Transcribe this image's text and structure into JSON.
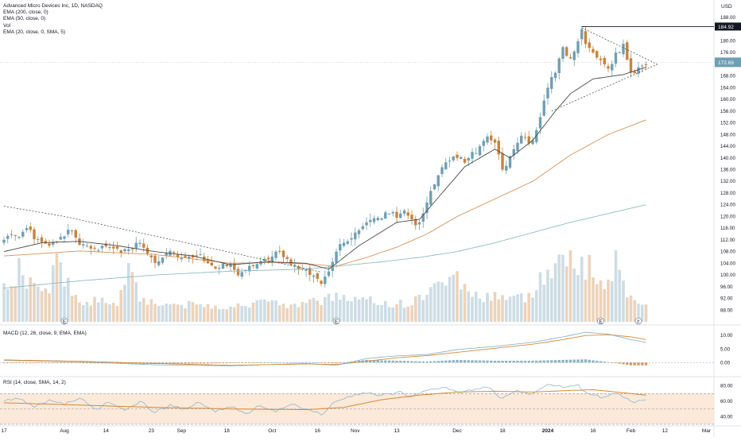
{
  "symbol_title": "Advanced Micro Devices Inc, 1D, NASDAQ",
  "overlays": [
    "EMA (200, close, 0)",
    "EMA (50, close, 0)",
    "Vol",
    "EMA (20, close, 0, SMA, 5)"
  ],
  "currency": "USD",
  "macd_title": "MACD (12, 26, close, 9, EMA, EMA)",
  "rsi_title": "RSI (14, close, SMA, 14, 2)",
  "last_price_label": "172.69",
  "high_level_label": "184.92",
  "colors": {
    "up": "#6f9fb4",
    "down": "#c9823b",
    "ema20": "#4a4a4a",
    "ema50": "#d8935a",
    "ema200": "#8fbcc2",
    "rsi_line": "#8fb7cc",
    "rsi_ma": "#d48a3a",
    "rsi_band": "#fbe9d9",
    "macd_line": "#8fb7cc",
    "signal_line": "#d48a3a"
  },
  "chart_data": [
    {
      "type": "candlestick",
      "name": "price",
      "x_ticks": [
        "17",
        "Aug",
        "14",
        "23",
        "Sep",
        "18",
        "Oct",
        "16",
        "Nov",
        "13",
        "Dec",
        "18",
        "2024",
        "16",
        "Feb",
        "12",
        "Mar"
      ],
      "ylim": [
        84,
        188
      ],
      "y_ticks": [
        88,
        92,
        96,
        100,
        104,
        108,
        112,
        116,
        120,
        124,
        128,
        132,
        136,
        140,
        144,
        148,
        152,
        156,
        160,
        164,
        168,
        172,
        176,
        180,
        184,
        188
      ],
      "close_anchors": [
        [
          0,
          112
        ],
        [
          4,
          114
        ],
        [
          6,
          116
        ],
        [
          8,
          113
        ],
        [
          12,
          110
        ],
        [
          14,
          112
        ],
        [
          16,
          114
        ],
        [
          18,
          115
        ],
        [
          20,
          111
        ],
        [
          24,
          109
        ],
        [
          28,
          110
        ],
        [
          32,
          108
        ],
        [
          36,
          111
        ],
        [
          38,
          108
        ],
        [
          40,
          104
        ],
        [
          44,
          108
        ],
        [
          48,
          106
        ],
        [
          50,
          107
        ],
        [
          52,
          106
        ],
        [
          56,
          102
        ],
        [
          60,
          104
        ],
        [
          62,
          100
        ],
        [
          64,
          102
        ],
        [
          66,
          103
        ],
        [
          68,
          105
        ],
        [
          70,
          106
        ],
        [
          72,
          108
        ],
        [
          74,
          107
        ],
        [
          76,
          104
        ],
        [
          78,
          102
        ],
        [
          80,
          101
        ],
        [
          82,
          99
        ],
        [
          84,
          97
        ],
        [
          86,
          101
        ],
        [
          88,
          108
        ],
        [
          90,
          111
        ],
        [
          92,
          113
        ],
        [
          94,
          116
        ],
        [
          96,
          118
        ],
        [
          98,
          119
        ],
        [
          100,
          120
        ],
        [
          102,
          121
        ],
        [
          104,
          120
        ],
        [
          106,
          122
        ],
        [
          108,
          119
        ],
        [
          110,
          117
        ],
        [
          112,
          125
        ],
        [
          114,
          131
        ],
        [
          116,
          137
        ],
        [
          118,
          140
        ],
        [
          120,
          140
        ],
        [
          122,
          139
        ],
        [
          124,
          141
        ],
        [
          126,
          144
        ],
        [
          128,
          147
        ],
        [
          130,
          145
        ],
        [
          132,
          136
        ],
        [
          134,
          140
        ],
        [
          136,
          146
        ],
        [
          138,
          147
        ],
        [
          140,
          145
        ],
        [
          142,
          154
        ],
        [
          144,
          164
        ],
        [
          146,
          170
        ],
        [
          148,
          178
        ],
        [
          150,
          174
        ],
        [
          152,
          180
        ],
        [
          153,
          184
        ],
        [
          154,
          180
        ],
        [
          156,
          176
        ],
        [
          158,
          174
        ],
        [
          160,
          170
        ],
        [
          162,
          176
        ],
        [
          164,
          178
        ],
        [
          166,
          169
        ],
        [
          168,
          171
        ],
        [
          170,
          172.69
        ]
      ],
      "ema20_anchors": [
        [
          0,
          108
        ],
        [
          10,
          111
        ],
        [
          20,
          111.5
        ],
        [
          30,
          110
        ],
        [
          40,
          108
        ],
        [
          50,
          106.5
        ],
        [
          60,
          103.5
        ],
        [
          70,
          104.5
        ],
        [
          80,
          104
        ],
        [
          86,
          102
        ],
        [
          94,
          110
        ],
        [
          104,
          118
        ],
        [
          110,
          119
        ],
        [
          116,
          128
        ],
        [
          122,
          137
        ],
        [
          130,
          143
        ],
        [
          134,
          140
        ],
        [
          140,
          146
        ],
        [
          146,
          156
        ],
        [
          150,
          162
        ],
        [
          156,
          167
        ],
        [
          164,
          168.5
        ],
        [
          170,
          171
        ]
      ],
      "ema50_anchors": [
        [
          0,
          106.5
        ],
        [
          20,
          108.2
        ],
        [
          40,
          107
        ],
        [
          60,
          104
        ],
        [
          70,
          104.3
        ],
        [
          80,
          103.8
        ],
        [
          88,
          103
        ],
        [
          96,
          106
        ],
        [
          104,
          109.5
        ],
        [
          112,
          114
        ],
        [
          120,
          120
        ],
        [
          130,
          126
        ],
        [
          140,
          132
        ],
        [
          150,
          141
        ],
        [
          160,
          148
        ],
        [
          170,
          153
        ]
      ],
      "ema200_anchors": [
        [
          0,
          95.5
        ],
        [
          20,
          98
        ],
        [
          40,
          100
        ],
        [
          60,
          101.3
        ],
        [
          80,
          102
        ],
        [
          100,
          104.5
        ],
        [
          110,
          106
        ],
        [
          120,
          108
        ],
        [
          130,
          111
        ],
        [
          140,
          114.5
        ],
        [
          150,
          118
        ],
        [
          160,
          121
        ],
        [
          170,
          124
        ]
      ],
      "volume_anchors": [
        [
          0,
          0.55
        ],
        [
          4,
          0.9
        ],
        [
          8,
          0.58
        ],
        [
          12,
          0.45
        ],
        [
          14,
          1.25
        ],
        [
          16,
          0.7
        ],
        [
          20,
          0.38
        ],
        [
          30,
          0.36
        ],
        [
          34,
          1.1
        ],
        [
          36,
          0.45
        ],
        [
          40,
          0.33
        ],
        [
          50,
          0.3
        ],
        [
          60,
          0.28
        ],
        [
          70,
          0.32
        ],
        [
          80,
          0.3
        ],
        [
          86,
          0.42
        ],
        [
          88,
          0.5
        ],
        [
          90,
          0.42
        ],
        [
          100,
          0.34
        ],
        [
          108,
          0.32
        ],
        [
          112,
          0.55
        ],
        [
          116,
          0.65
        ],
        [
          118,
          0.95
        ],
        [
          122,
          0.65
        ],
        [
          126,
          0.4
        ],
        [
          130,
          0.5
        ],
        [
          134,
          0.42
        ],
        [
          140,
          0.45
        ],
        [
          144,
          0.95
        ],
        [
          148,
          1.1
        ],
        [
          152,
          0.95
        ],
        [
          156,
          1.0
        ],
        [
          158,
          0.6
        ],
        [
          160,
          0.75
        ],
        [
          162,
          1.1
        ],
        [
          164,
          0.6
        ],
        [
          168,
          0.4
        ],
        [
          170,
          0.3
        ]
      ],
      "trendlines": {
        "downtrend": [
          [
            0,
            123.5
          ],
          [
            16,
            120
          ],
          [
            84,
            101
          ]
        ],
        "triangle_top": [
          [
            153,
            184.5
          ],
          [
            173,
            172
          ]
        ],
        "triangle_bottom": [
          [
            145,
            156
          ],
          [
            173,
            172
          ]
        ]
      },
      "event_markers": [
        {
          "x": 16,
          "label": "E"
        },
        {
          "x": 88,
          "label": "E"
        },
        {
          "x": 158,
          "label": "E"
        },
        {
          "x": 168,
          "label": "#"
        }
      ]
    },
    {
      "type": "histogram+line",
      "name": "MACD",
      "ylim": [
        -4,
        13
      ],
      "y_ticks": [
        0.0,
        5.0,
        10.0
      ],
      "macd_anchors": [
        [
          0,
          0.8
        ],
        [
          20,
          0.3
        ],
        [
          40,
          -0.8
        ],
        [
          60,
          -1.2
        ],
        [
          80,
          -0.3
        ],
        [
          88,
          -1.0
        ],
        [
          96,
          1.5
        ],
        [
          104,
          2.5
        ],
        [
          112,
          3.0
        ],
        [
          120,
          4.8
        ],
        [
          130,
          6.0
        ],
        [
          140,
          7.5
        ],
        [
          148,
          9.5
        ],
        [
          154,
          11.2
        ],
        [
          160,
          10.5
        ],
        [
          166,
          8.5
        ],
        [
          170,
          7.5
        ]
      ],
      "signal_anchors": [
        [
          0,
          1.0
        ],
        [
          20,
          0.5
        ],
        [
          40,
          -0.3
        ],
        [
          60,
          -1.0
        ],
        [
          80,
          -0.5
        ],
        [
          88,
          -0.7
        ],
        [
          96,
          0.5
        ],
        [
          104,
          1.8
        ],
        [
          112,
          2.6
        ],
        [
          120,
          3.8
        ],
        [
          130,
          5.3
        ],
        [
          140,
          6.8
        ],
        [
          148,
          8.5
        ],
        [
          154,
          10.0
        ],
        [
          160,
          10.3
        ],
        [
          166,
          9.5
        ],
        [
          170,
          8.5
        ]
      ]
    },
    {
      "type": "line",
      "name": "RSI",
      "ylim": [
        32,
        90
      ],
      "y_ticks": [
        40.0,
        60.0,
        80.0
      ],
      "bands": [
        30,
        50,
        70
      ],
      "rsi_anchors": [
        [
          0,
          60
        ],
        [
          4,
          63
        ],
        [
          8,
          52
        ],
        [
          12,
          62
        ],
        [
          16,
          55
        ],
        [
          20,
          64
        ],
        [
          24,
          50
        ],
        [
          28,
          58
        ],
        [
          32,
          48
        ],
        [
          36,
          60
        ],
        [
          40,
          45
        ],
        [
          44,
          56
        ],
        [
          48,
          50
        ],
        [
          52,
          58
        ],
        [
          56,
          46
        ],
        [
          60,
          52
        ],
        [
          64,
          44
        ],
        [
          68,
          54
        ],
        [
          72,
          46
        ],
        [
          76,
          56
        ],
        [
          80,
          50
        ],
        [
          84,
          42
        ],
        [
          88,
          60
        ],
        [
          92,
          66
        ],
        [
          96,
          70
        ],
        [
          100,
          68
        ],
        [
          104,
          72
        ],
        [
          108,
          66
        ],
        [
          112,
          74
        ],
        [
          116,
          78
        ],
        [
          120,
          72
        ],
        [
          124,
          74
        ],
        [
          128,
          78
        ],
        [
          132,
          64
        ],
        [
          136,
          74
        ],
        [
          140,
          70
        ],
        [
          144,
          82
        ],
        [
          148,
          78
        ],
        [
          152,
          82
        ],
        [
          154,
          72
        ],
        [
          158,
          64
        ],
        [
          162,
          70
        ],
        [
          166,
          60
        ],
        [
          170,
          62
        ]
      ],
      "rsi_ma_anchors": [
        [
          0,
          58
        ],
        [
          20,
          55
        ],
        [
          40,
          52
        ],
        [
          60,
          50
        ],
        [
          80,
          49
        ],
        [
          90,
          52
        ],
        [
          100,
          62
        ],
        [
          110,
          68
        ],
        [
          120,
          72
        ],
        [
          130,
          73
        ],
        [
          140,
          72
        ],
        [
          150,
          74
        ],
        [
          156,
          75
        ],
        [
          162,
          72
        ],
        [
          170,
          68
        ]
      ]
    }
  ]
}
